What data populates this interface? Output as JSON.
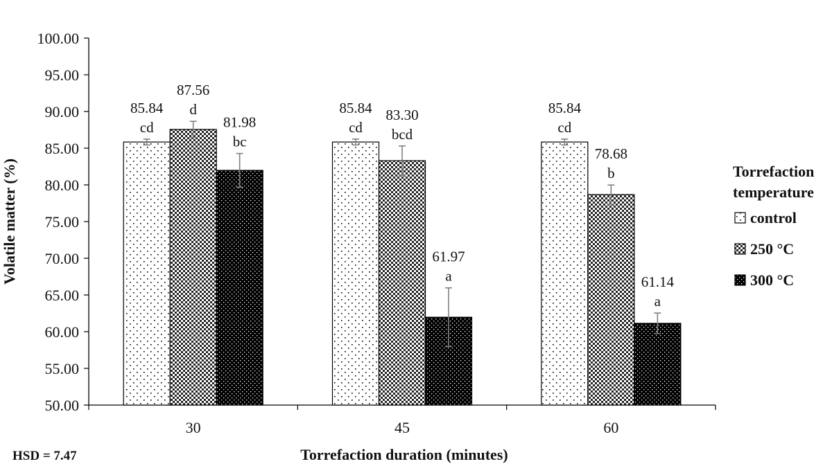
{
  "chart_data": {
    "type": "bar",
    "categories": [
      "30",
      "45",
      "60"
    ],
    "series": [
      {
        "name": "control",
        "pattern": "dots",
        "values": [
          85.84,
          85.84,
          85.84
        ],
        "errors": [
          0.4,
          0.4,
          0.4
        ],
        "labels": [
          "85.84",
          "85.84",
          "85.84"
        ],
        "letters": [
          "cd",
          "cd",
          "cd"
        ]
      },
      {
        "name": "250 °C",
        "pattern": "checker",
        "values": [
          87.56,
          83.3,
          78.68
        ],
        "errors": [
          1.1,
          2.0,
          1.3
        ],
        "labels": [
          "87.56",
          "83.30",
          "78.68"
        ],
        "letters": [
          "d",
          "bcd",
          "b"
        ]
      },
      {
        "name": "300 °C",
        "pattern": "dark",
        "values": [
          81.98,
          61.97,
          61.14
        ],
        "errors": [
          2.3,
          4.0,
          1.4
        ],
        "labels": [
          "81.98",
          "61.97",
          "61.14"
        ],
        "letters": [
          "bc",
          "a",
          "a"
        ]
      }
    ],
    "xlabel": "Torrefaction  duration  (minutes)",
    "ylabel": "Volatile  matter  (%)",
    "ylim": [
      50,
      100
    ],
    "yticks": [
      "50.00",
      "55.00",
      "60.00",
      "65.00",
      "70.00",
      "75.00",
      "80.00",
      "85.00",
      "90.00",
      "95.00",
      "100.00"
    ],
    "legend": {
      "title_line1": "Torrefaction",
      "title_line2": "temperature",
      "position": "right"
    },
    "note": "HSD = 7.47",
    "grid": false
  },
  "colors": {
    "bar_outline": "#000000",
    "error_bar": "#808080",
    "axis": "#000000"
  }
}
